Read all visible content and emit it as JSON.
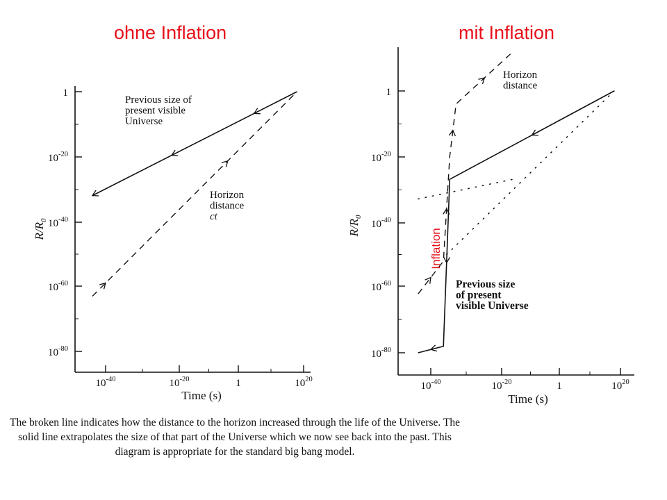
{
  "headings": {
    "left": "ohne Inflation",
    "right": "mit Inflation"
  },
  "caption": "The broken line indicates how the distance to the horizon increased through the life of the Universe. The solid line extrapolates the size of that part of the Universe which we now see back into the past. This diagram is appropriate for the standard big bang model.",
  "chart_data": [
    {
      "type": "line",
      "title": "ohne Inflation",
      "xlabel": "Time (s)",
      "ylabel": "R/R0",
      "x_scale": "log",
      "y_scale": "log",
      "xticks": [
        {
          "label": "10^-40",
          "value": 1e-40
        },
        {
          "label": "10^-20",
          "value": 1e-20
        },
        {
          "label": "1",
          "value": 1
        },
        {
          "label": "10^20",
          "value": 1e+20
        }
      ],
      "yticks": [
        {
          "label": "1",
          "value": 1
        },
        {
          "label": "10^-20",
          "value": 1e-20
        },
        {
          "label": "10^-40",
          "value": 1e-40
        },
        {
          "label": "10^-60",
          "value": 1e-60
        },
        {
          "label": "10^-80",
          "value": 1e-80
        }
      ],
      "xlim": [
        1e-50,
        1e+22
      ],
      "ylim": [
        1e-85,
        1000.0
      ],
      "series": [
        {
          "name": "Previous size of present visible Universe",
          "style": "solid",
          "arrow_toward": "past",
          "arrow_at": [
            1e-44,
            1e-20,
            100000.0
          ],
          "x": [
            1e-44,
            1e+18
          ],
          "y": [
            1e-32,
            1
          ]
        },
        {
          "name": "Horizon distance ct",
          "style": "dashed",
          "arrow_toward": "future",
          "arrow_at": [
            1e-40,
            0.001
          ],
          "x": [
            1e-44,
            1e+18
          ],
          "y": [
            1e-63,
            1
          ]
        }
      ],
      "annotations": [
        {
          "lines": [
            "Previous size of",
            "present visible",
            "Universe"
          ]
        },
        {
          "lines": [
            "Horizon",
            "distance",
            "ct"
          ]
        }
      ]
    },
    {
      "type": "line",
      "title": "mit Inflation",
      "xlabel": "Time (s)",
      "ylabel": "R/R0",
      "x_scale": "log",
      "y_scale": "log",
      "xticks": [
        {
          "label": "10^-40",
          "value": 1e-40
        },
        {
          "label": "10^-20",
          "value": 1e-20
        },
        {
          "label": "1",
          "value": 1
        },
        {
          "label": "10^20",
          "value": 1e+20
        }
      ],
      "yticks": [
        {
          "label": "1",
          "value": 1
        },
        {
          "label": "10^-20",
          "value": 1e-20
        },
        {
          "label": "10^-40",
          "value": 1e-40
        },
        {
          "label": "10^-60",
          "value": 1e-60
        },
        {
          "label": "10^-80",
          "value": 1e-80
        }
      ],
      "xlim": [
        1e-50,
        1e+22
      ],
      "ylim": [
        1e-85,
        1000.0
      ],
      "series": [
        {
          "name": "Previous size of present visible Universe",
          "style": "solid",
          "arrow_toward": "past",
          "x": [
            1e-44,
            1e-36,
            1e-34,
            1e+18
          ],
          "y": [
            1e-80,
            1e-78,
            1e-27,
            1
          ]
        },
        {
          "name": "Horizon distance",
          "style": "dashed",
          "arrow_toward": "future",
          "x": [
            1e-44,
            1e-36,
            1e-34,
            1e-32,
            1e-14
          ],
          "y": [
            1e-62,
            1e-52,
            1e-20,
            0.0001,
            1000000000000.0
          ]
        },
        {
          "name": "",
          "style": "dotted",
          "x": [
            1e-44,
            1e-14
          ],
          "y": [
            1e-33,
            1e-27
          ]
        },
        {
          "name": "",
          "style": "dotted",
          "x": [
            1e-35,
            1e+18
          ],
          "y": [
            1e-50,
            1
          ]
        }
      ],
      "annotations": [
        {
          "lines": [
            "Horizon",
            "distance"
          ]
        },
        {
          "lines": [
            "Previous size",
            "of present",
            "visible Universe"
          ]
        },
        {
          "lines": [
            "Inflation"
          ],
          "color": "#e8101a",
          "rotation": -90
        }
      ]
    }
  ]
}
